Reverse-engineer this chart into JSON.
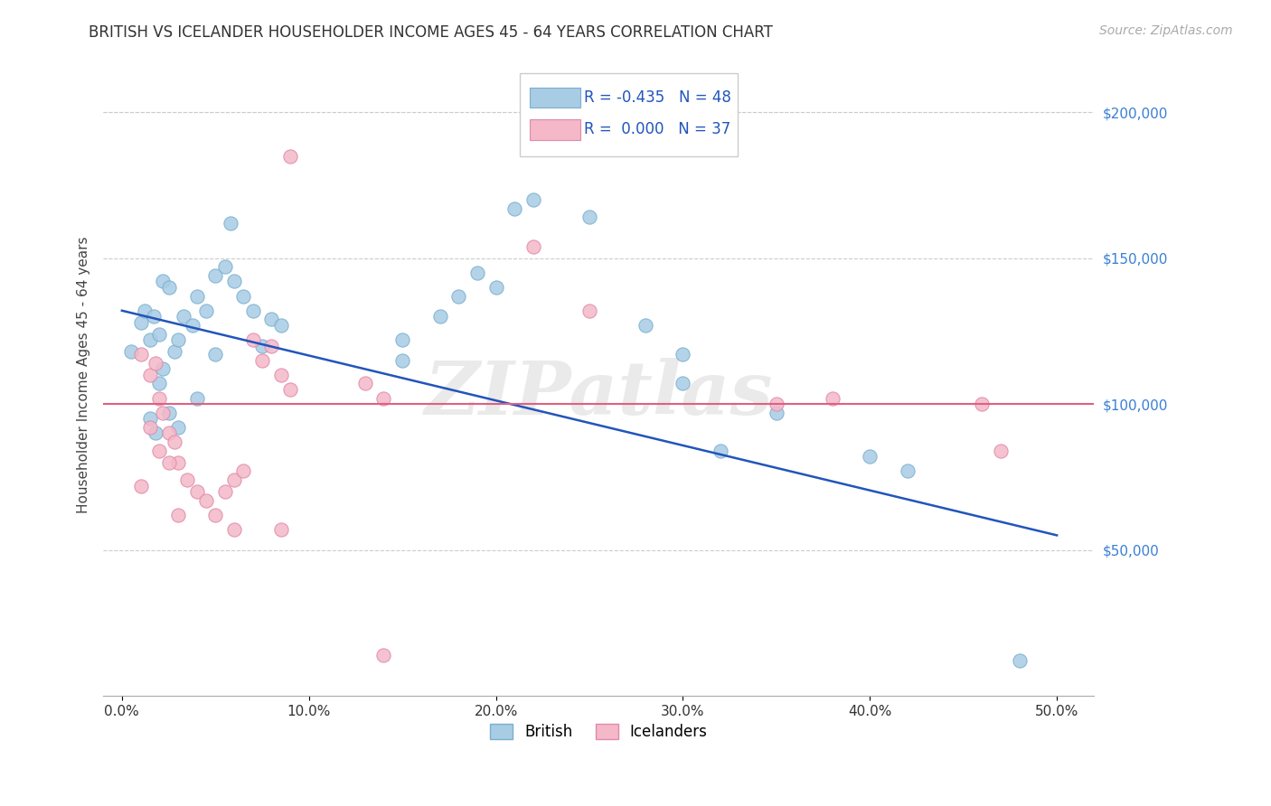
{
  "title": "BRITISH VS ICELANDER HOUSEHOLDER INCOME AGES 45 - 64 YEARS CORRELATION CHART",
  "source": "Source: ZipAtlas.com",
  "ylabel": "Householder Income Ages 45 - 64 years",
  "xlabel_ticks": [
    "0.0%",
    "10.0%",
    "20.0%",
    "30.0%",
    "40.0%",
    "50.0%"
  ],
  "xlabel_vals": [
    0.0,
    0.1,
    0.2,
    0.3,
    0.4,
    0.5
  ],
  "ytick_labels": [
    "$50,000",
    "$100,000",
    "$150,000",
    "$200,000"
  ],
  "ytick_vals": [
    50000,
    100000,
    150000,
    200000
  ],
  "ylim": [
    0,
    220000
  ],
  "xlim": [
    -0.01,
    0.52
  ],
  "british_R": "-0.435",
  "british_N": "48",
  "icelander_R": "0.000",
  "icelander_N": "37",
  "blue_color": "#a8cce4",
  "blue_edge_color": "#7aafcf",
  "pink_color": "#f4b8c8",
  "pink_edge_color": "#e08aaa",
  "blue_line_color": "#2255bb",
  "pink_line_color": "#e06080",
  "grid_color": "#cccccc",
  "right_tick_color": "#3a7fd5",
  "watermark": "ZIPatlas",
  "blue_line_x0": 0.0,
  "blue_line_y0": 132000,
  "blue_line_x1": 0.5,
  "blue_line_y1": 55000,
  "pink_line_y": 100000,
  "british_points": [
    [
      0.005,
      118000
    ],
    [
      0.01,
      128000
    ],
    [
      0.012,
      132000
    ],
    [
      0.015,
      122000
    ],
    [
      0.017,
      130000
    ],
    [
      0.02,
      124000
    ],
    [
      0.022,
      142000
    ],
    [
      0.025,
      140000
    ],
    [
      0.028,
      118000
    ],
    [
      0.03,
      122000
    ],
    [
      0.033,
      130000
    ],
    [
      0.038,
      127000
    ],
    [
      0.04,
      137000
    ],
    [
      0.045,
      132000
    ],
    [
      0.05,
      144000
    ],
    [
      0.055,
      147000
    ],
    [
      0.058,
      162000
    ],
    [
      0.06,
      142000
    ],
    [
      0.065,
      137000
    ],
    [
      0.07,
      132000
    ],
    [
      0.075,
      120000
    ],
    [
      0.08,
      129000
    ],
    [
      0.085,
      127000
    ],
    [
      0.015,
      95000
    ],
    [
      0.018,
      90000
    ],
    [
      0.02,
      107000
    ],
    [
      0.022,
      112000
    ],
    [
      0.025,
      97000
    ],
    [
      0.03,
      92000
    ],
    [
      0.04,
      102000
    ],
    [
      0.05,
      117000
    ],
    [
      0.15,
      122000
    ],
    [
      0.15,
      115000
    ],
    [
      0.17,
      130000
    ],
    [
      0.18,
      137000
    ],
    [
      0.19,
      145000
    ],
    [
      0.2,
      140000
    ],
    [
      0.21,
      167000
    ],
    [
      0.22,
      170000
    ],
    [
      0.25,
      164000
    ],
    [
      0.28,
      127000
    ],
    [
      0.3,
      107000
    ],
    [
      0.3,
      117000
    ],
    [
      0.32,
      84000
    ],
    [
      0.35,
      97000
    ],
    [
      0.4,
      82000
    ],
    [
      0.42,
      77000
    ],
    [
      0.48,
      12000
    ]
  ],
  "icelander_points": [
    [
      0.09,
      185000
    ],
    [
      0.01,
      117000
    ],
    [
      0.015,
      110000
    ],
    [
      0.018,
      114000
    ],
    [
      0.02,
      102000
    ],
    [
      0.022,
      97000
    ],
    [
      0.025,
      90000
    ],
    [
      0.028,
      87000
    ],
    [
      0.03,
      80000
    ],
    [
      0.035,
      74000
    ],
    [
      0.04,
      70000
    ],
    [
      0.045,
      67000
    ],
    [
      0.05,
      62000
    ],
    [
      0.055,
      70000
    ],
    [
      0.06,
      74000
    ],
    [
      0.065,
      77000
    ],
    [
      0.07,
      122000
    ],
    [
      0.075,
      115000
    ],
    [
      0.08,
      120000
    ],
    [
      0.085,
      110000
    ],
    [
      0.015,
      92000
    ],
    [
      0.02,
      84000
    ],
    [
      0.025,
      80000
    ],
    [
      0.13,
      107000
    ],
    [
      0.14,
      102000
    ],
    [
      0.22,
      154000
    ],
    [
      0.25,
      132000
    ],
    [
      0.35,
      100000
    ],
    [
      0.38,
      102000
    ],
    [
      0.46,
      100000
    ],
    [
      0.47,
      84000
    ],
    [
      0.01,
      72000
    ],
    [
      0.03,
      62000
    ],
    [
      0.06,
      57000
    ],
    [
      0.085,
      57000
    ],
    [
      0.14,
      14000
    ],
    [
      0.09,
      105000
    ]
  ],
  "point_size": 120
}
